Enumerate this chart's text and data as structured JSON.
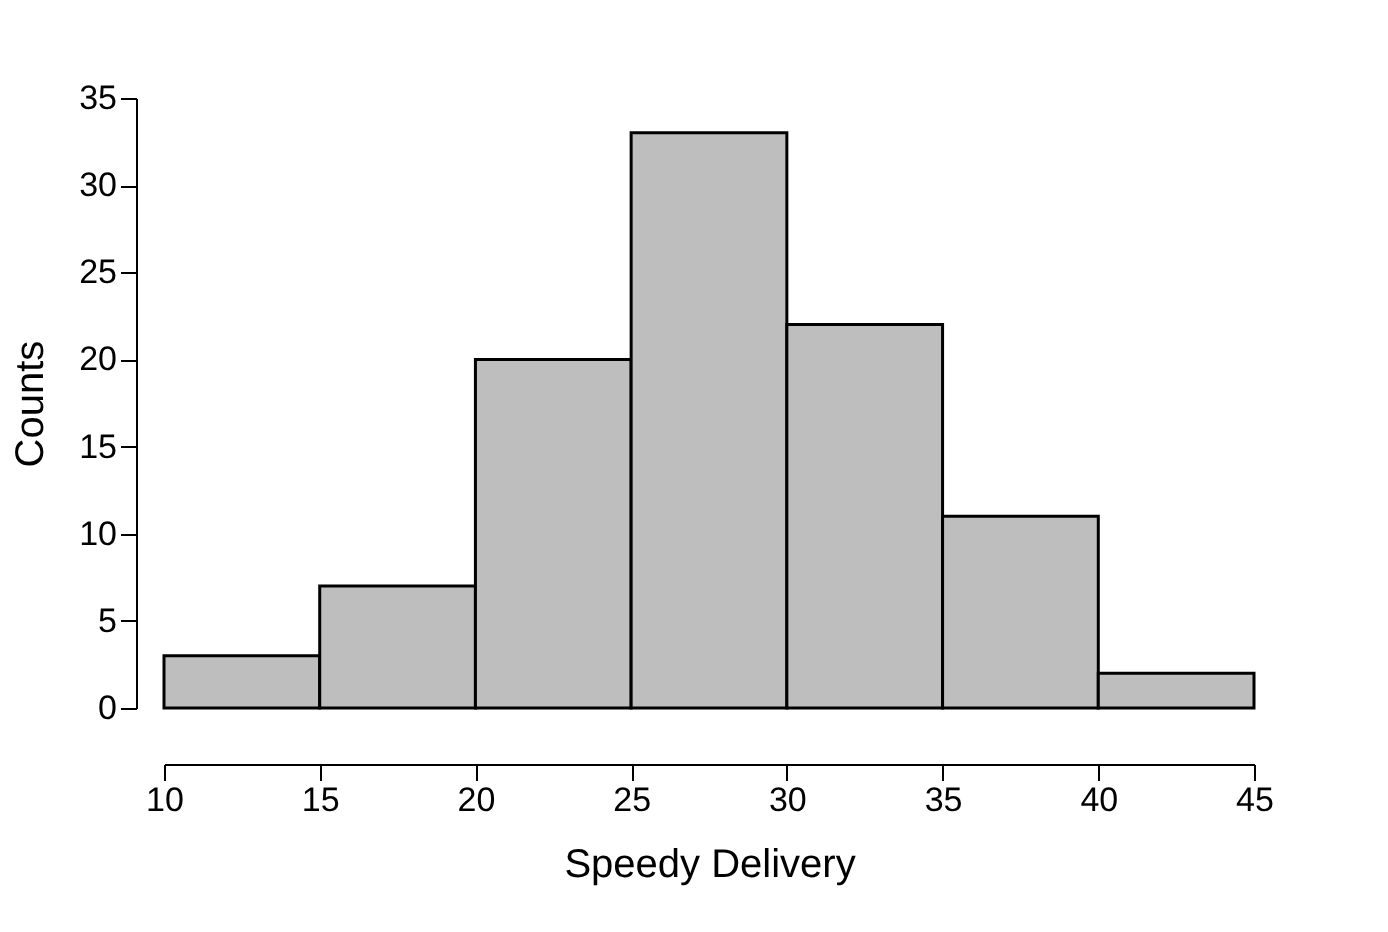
{
  "chart_data": {
    "type": "histogram",
    "xlabel": "Speedy Delivery",
    "ylabel": "Counts",
    "bins": [
      10,
      15,
      20,
      25,
      30,
      35,
      40,
      45
    ],
    "values": [
      3,
      7,
      20,
      33,
      22,
      11,
      2
    ],
    "color": "#bebebe",
    "xlim": [
      10,
      45
    ],
    "xticks": [
      10,
      15,
      20,
      25,
      30,
      35,
      40,
      45
    ],
    "ylim": [
      0,
      35
    ],
    "yticks": [
      0,
      5,
      10,
      15,
      20,
      25,
      30,
      35
    ],
    "grid": false
  }
}
